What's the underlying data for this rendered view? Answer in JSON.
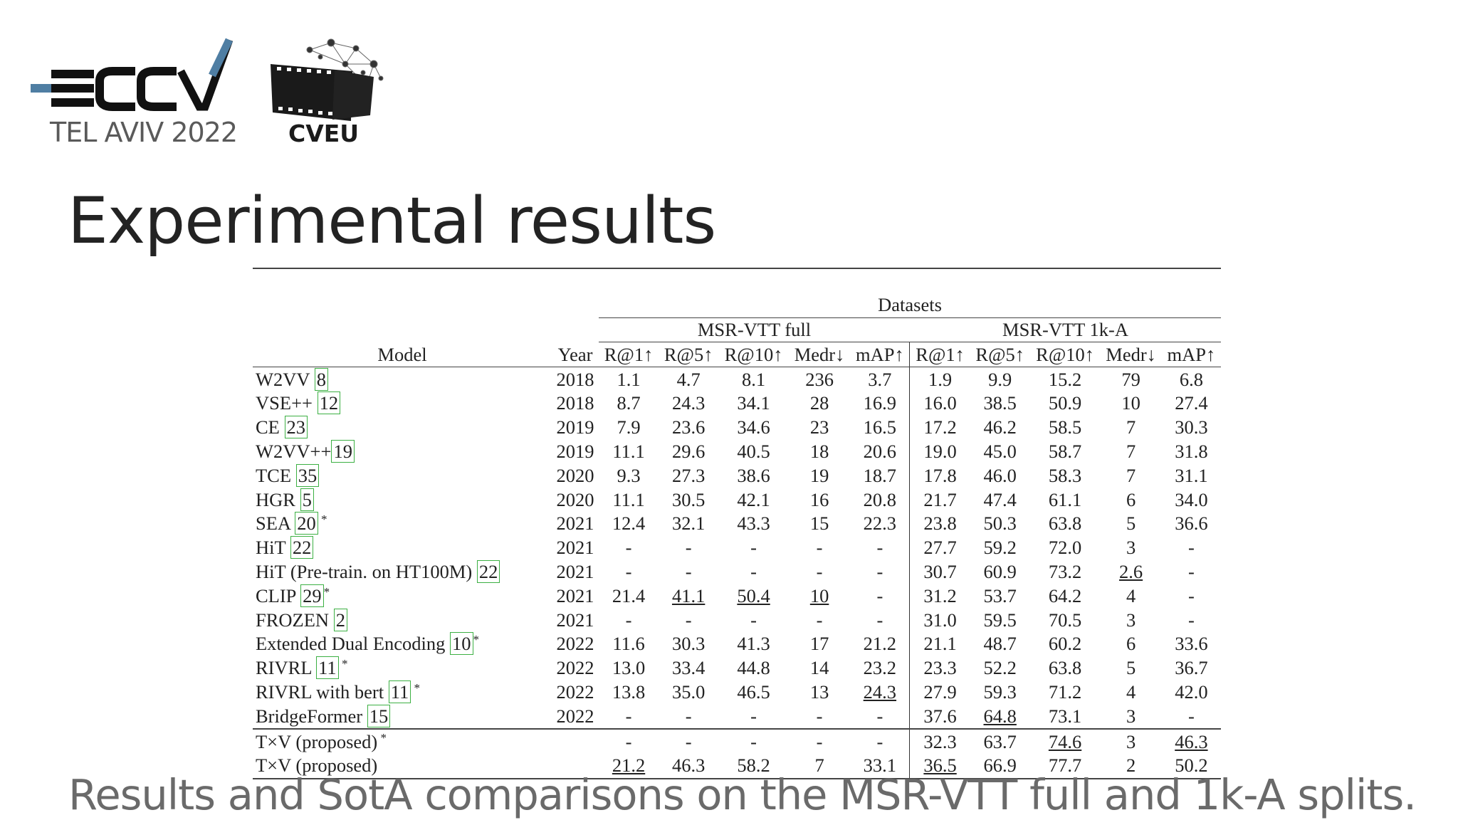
{
  "logos": {
    "eccv_subtitle": "TEL AVIV 2022",
    "cveu_label": "CVEU",
    "eccv_icon": "eccv-logo-icon",
    "cveu_icon": "film-strip-network-icon",
    "accent_color": "#4f7ea3"
  },
  "title": "Experimental results",
  "caption": "Results and SotA comparisons on the MSR-VTT full and 1k-A splits.",
  "table": {
    "datasets_label": "Datasets",
    "group_full": "MSR-VTT full",
    "group_1k": "MSR-VTT 1k-A",
    "col_model": "Model",
    "col_year": "Year",
    "metrics": [
      "R@1↑",
      "R@5↑",
      "R@10↑",
      "Medr↓",
      "mAP↑",
      "R@1↑",
      "R@5↑",
      "R@10↑",
      "Medr↓",
      "mAP↑"
    ],
    "rows": [
      {
        "model": "W2VV ",
        "ref": "8",
        "star": "",
        "year": "2018",
        "vals": [
          "1.1",
          "4.7",
          "8.1",
          "236",
          "3.7",
          "1.9",
          "9.9",
          "15.2",
          "79",
          "6.8"
        ]
      },
      {
        "model": "VSE++ ",
        "ref": "12",
        "star": "",
        "year": "2018",
        "vals": [
          "8.7",
          "24.3",
          "34.1",
          "28",
          "16.9",
          "16.0",
          "38.5",
          "50.9",
          "10",
          "27.4"
        ]
      },
      {
        "model": "CE ",
        "ref": "23",
        "star": "",
        "year": "2019",
        "vals": [
          "7.9",
          "23.6",
          "34.6",
          "23",
          "16.5",
          "17.2",
          "46.2",
          "58.5",
          "7",
          "30.3"
        ]
      },
      {
        "model": "W2VV++",
        "ref": "19",
        "star": "",
        "year": "2019",
        "vals": [
          "11.1",
          "29.6",
          "40.5",
          "18",
          "20.6",
          "19.0",
          "45.0",
          "58.7",
          "7",
          "31.8"
        ]
      },
      {
        "model": "TCE ",
        "ref": "35",
        "star": "",
        "year": "2020",
        "vals": [
          "9.3",
          "27.3",
          "38.6",
          "19",
          "18.7",
          "17.8",
          "46.0",
          "58.3",
          "7",
          "31.1"
        ]
      },
      {
        "model": "HGR ",
        "ref": "5",
        "star": "",
        "year": "2020",
        "vals": [
          "11.1",
          "30.5",
          "42.1",
          "16",
          "20.8",
          "21.7",
          "47.4",
          "61.1",
          "6",
          "34.0"
        ]
      },
      {
        "model": "SEA ",
        "ref": "20",
        "star": " *",
        "year": "2021",
        "vals": [
          "12.4",
          "32.1",
          "43.3",
          "15",
          "22.3",
          "23.8",
          "50.3",
          "63.8",
          "5",
          "36.6"
        ]
      },
      {
        "model": "HiT ",
        "ref": "22",
        "star": "",
        "year": "2021",
        "vals": [
          "-",
          "-",
          "-",
          "-",
          "-",
          "27.7",
          "59.2",
          "72.0",
          "3",
          "-"
        ]
      },
      {
        "model": "HiT (Pre-train. on HT100M) ",
        "ref": "22",
        "star": "",
        "year": "2021",
        "vals": [
          "-",
          "-",
          "-",
          "-",
          "-",
          "30.7",
          "60.9",
          "73.2",
          "2.6",
          "-"
        ]
      },
      {
        "model": "CLIP ",
        "ref": "29",
        "star": "*",
        "year": "2021",
        "vals": [
          "21.4",
          "41.1",
          "50.4",
          "10",
          "-",
          "31.2",
          "53.7",
          "64.2",
          "4",
          "-"
        ]
      },
      {
        "model": "FROZEN ",
        "ref": "2",
        "star": "",
        "year": "2021",
        "vals": [
          "-",
          "-",
          "-",
          "-",
          "-",
          "31.0",
          "59.5",
          "70.5",
          "3",
          "-"
        ]
      },
      {
        "model": "Extended Dual Encoding ",
        "ref": "10",
        "star": "*",
        "year": "2022",
        "vals": [
          "11.6",
          "30.3",
          "41.3",
          "17",
          "21.2",
          "21.1",
          "48.7",
          "60.2",
          "6",
          "33.6"
        ]
      },
      {
        "model": "RIVRL ",
        "ref": "11",
        "star": " *",
        "year": "2022",
        "vals": [
          "13.0",
          "33.4",
          "44.8",
          "14",
          "23.2",
          "23.3",
          "52.2",
          "63.8",
          "5",
          "36.7"
        ]
      },
      {
        "model": "RIVRL with bert ",
        "ref": "11",
        "star": " *",
        "year": "2022",
        "vals": [
          "13.8",
          "35.0",
          "46.5",
          "13",
          "24.3",
          "27.9",
          "59.3",
          "71.2",
          "4",
          "42.0"
        ]
      },
      {
        "model": "BridgeFormer ",
        "ref": "15",
        "star": "",
        "year": "2022",
        "vals": [
          "-",
          "-",
          "-",
          "-",
          "-",
          "37.6",
          "64.8",
          "73.1",
          "3",
          "-"
        ]
      }
    ],
    "proposed_rows": [
      {
        "model": "T×V (proposed)",
        "star": " *",
        "year": "",
        "vals": [
          "-",
          "-",
          "-",
          "-",
          "-",
          "32.3",
          "63.7",
          "74.6",
          "3",
          "46.3"
        ]
      },
      {
        "model": "T×V (proposed)",
        "star": "",
        "year": "",
        "vals": [
          "21.2",
          "46.3",
          "58.2",
          "7",
          "33.1",
          "36.5",
          "66.9",
          "77.7",
          "2",
          "50.2"
        ]
      }
    ]
  }
}
